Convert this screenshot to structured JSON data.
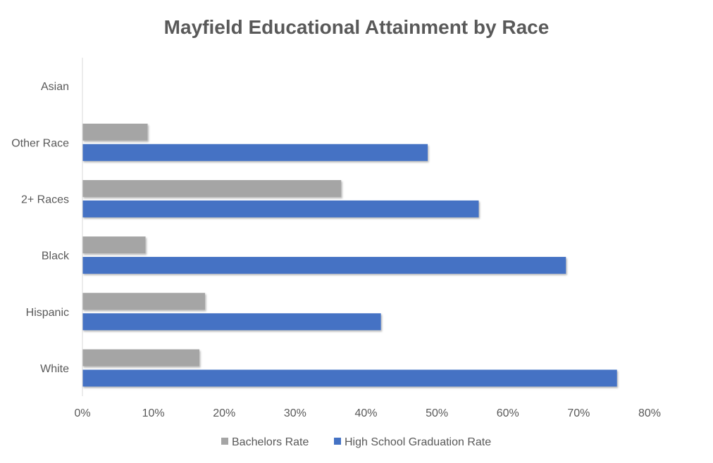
{
  "chart_data": {
    "type": "bar",
    "orientation": "horizontal",
    "title": "Mayfield Educational Attainment by Race",
    "xlabel": "",
    "ylabel": "",
    "categories": [
      "White",
      "Hispanic",
      "Black",
      "2+ Races",
      "Other Race",
      "Asian"
    ],
    "series": [
      {
        "name": "Bachelors Rate",
        "color": "#a5a5a5",
        "values": [
          16.5,
          17.3,
          8.9,
          36.5,
          9.2,
          0
        ]
      },
      {
        "name": "High School Graduation Rate",
        "color": "#4472c4",
        "values": [
          75.4,
          42.1,
          68.2,
          55.9,
          48.7,
          0
        ]
      }
    ],
    "xlim": [
      0,
      80
    ],
    "xticks": [
      "0%",
      "10%",
      "20%",
      "30%",
      "40%",
      "50%",
      "60%",
      "70%",
      "80%"
    ],
    "tick_values": [
      0,
      10,
      20,
      30,
      40,
      50,
      60,
      70,
      80
    ],
    "grid": false,
    "legend_position": "bottom"
  }
}
